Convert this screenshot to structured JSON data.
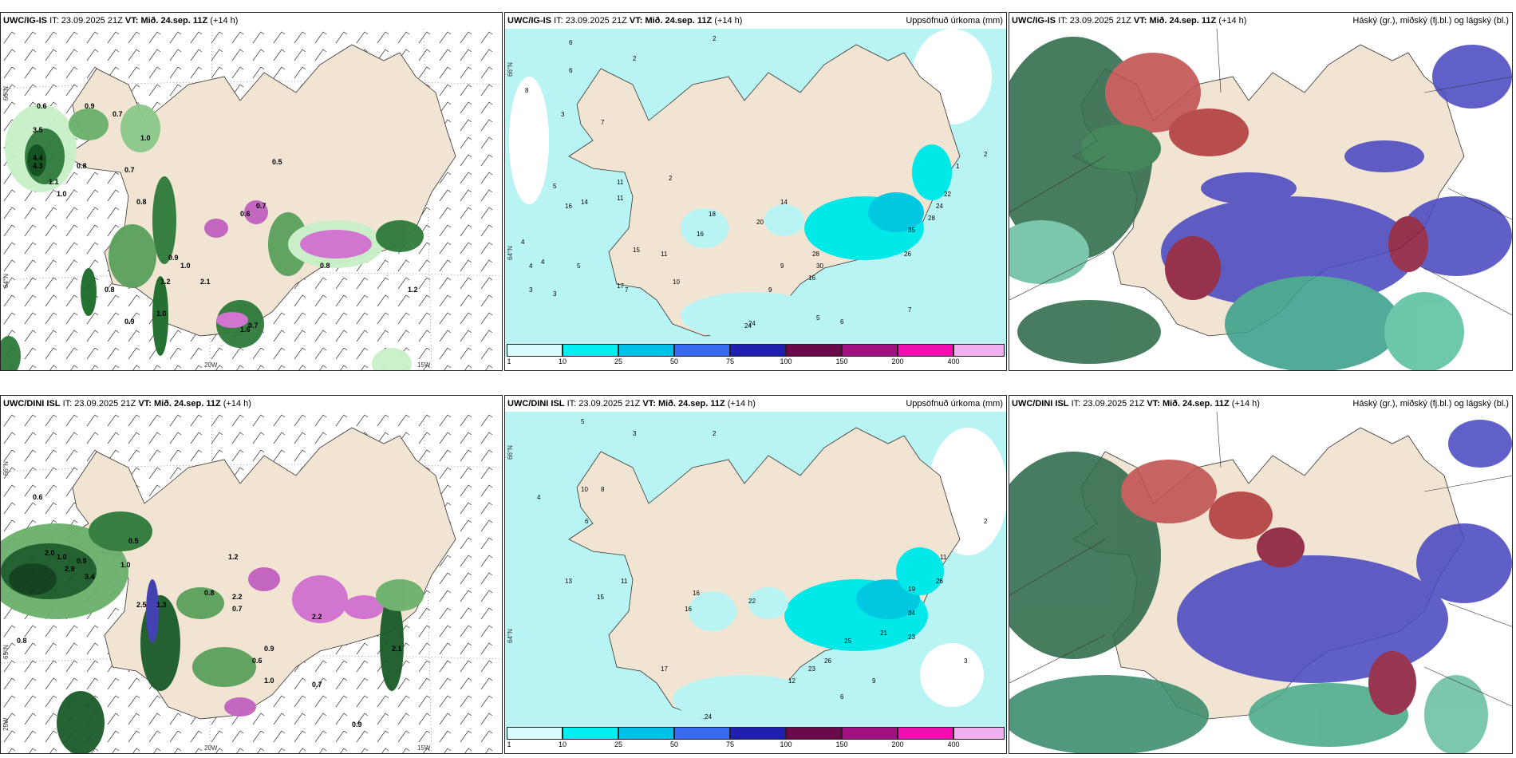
{
  "panels": [
    {
      "model": "UWC/IG-IS",
      "it_label": "IT:",
      "it": "23.09.2025 21Z",
      "vt_label": "VT:",
      "vt": "Mið. 24.sep. 11Z",
      "lead": "(+14 h)",
      "right": ""
    },
    {
      "model": "UWC/IG-IS",
      "it_label": "IT:",
      "it": "23.09.2025 21Z",
      "vt_label": "VT:",
      "vt": "Mið. 24.sep. 11Z",
      "lead": "(+14 h)",
      "right": "Uppsöfnuð úrkoma (mm)"
    },
    {
      "model": "UWC/IG-IS",
      "it_label": "IT:",
      "it": "23.09.2025 21Z",
      "vt_label": "VT:",
      "vt": "Mið. 24.sep. 11Z",
      "lead": "(+14 h)",
      "right": "Háský (gr.), miðský (fj.bl.) og lágský (bl.)"
    },
    {
      "model": "UWC/DINI ISL",
      "it_label": "IT:",
      "it": "23.09.2025 21Z",
      "vt_label": "VT:",
      "vt": "Mið. 24.sep. 11Z",
      "lead": "(+14 h)",
      "right": ""
    },
    {
      "model": "UWC/DINI ISL",
      "it_label": "IT:",
      "it": "23.09.2025 21Z",
      "vt_label": "VT:",
      "vt": "Mið. 24.sep. 11Z",
      "lead": "(+14 h)",
      "right": "Uppsöfnuð úrkoma (mm)"
    },
    {
      "model": "UWC/DINI ISL",
      "it_label": "IT:",
      "it": "23.09.2025 21Z",
      "vt_label": "VT:",
      "vt": "Mið. 24.sep. 11Z",
      "lead": "(+14 h)",
      "right": "Háský (gr.), miðský (fj.bl.) og lágský (bl.)"
    }
  ],
  "axes": {
    "lat_66": "66°N",
    "lat_64": "64°N",
    "lat_65": "65°N",
    "lon_20": "20W",
    "lon_15": "15W",
    "lon_25": "25W"
  },
  "precip_colorbar": {
    "labels": [
      "1",
      "10",
      "25",
      "50",
      "75",
      "100",
      "150",
      "200",
      "400"
    ],
    "colors": [
      "#d8fbfb",
      "#00f0f0",
      "#00c0e8",
      "#3a6af0",
      "#2020b0",
      "#6a0a4a",
      "#a01080",
      "#f010b0",
      "#f0b0f0"
    ]
  },
  "colors": {
    "land": "#f1e4d3",
    "precip_light": "#b8f4f4",
    "rain_light": "#c8f0c8",
    "rain_dark": "#0a5a18",
    "cloud_high": "#2e7a4a",
    "cloud_mid": "#b03a3a",
    "cloud_low": "#4a4ac0"
  },
  "precip_numbers_top": [
    "6",
    "2",
    "2",
    "8",
    "5",
    "4",
    "7",
    "3",
    "11",
    "16",
    "14",
    "15",
    "11",
    "10",
    "2",
    "4",
    "4",
    "3",
    "5",
    "3",
    "6",
    "7",
    "11",
    "17",
    "24",
    "28",
    "30",
    "16",
    "26",
    "20",
    "18",
    "16",
    "24",
    "35",
    "22",
    "24",
    "28",
    "14",
    "2",
    "1",
    "9",
    "9",
    "5",
    "6",
    "7"
  ],
  "wind_numbers_top": [
    "0.6",
    "0.9",
    "3.5",
    "4.4",
    "4.3",
    "0.7",
    "1.0",
    "0.8",
    "1.1",
    "1.0",
    "0.7",
    "0.8",
    "0.5",
    "0.9",
    "1.0",
    "1.2",
    "2.1",
    "0.8",
    "0.9",
    "1.0",
    "0.6",
    "0.7",
    "0.8",
    "0.7",
    "1.2",
    "1.6"
  ],
  "precip_numbers_bottom": [
    "5",
    "3",
    "2",
    "4",
    "6",
    "8",
    "10",
    "13",
    "11",
    "16",
    "15",
    "22",
    "12",
    "24",
    "17",
    "16",
    "23",
    "25",
    "26",
    "34",
    "19",
    "26",
    "23",
    "21",
    "11",
    "9",
    "6",
    "2",
    "3"
  ],
  "wind_numbers_bottom": [
    "0.6",
    "2.0",
    "1.0",
    "0.9",
    "3.4",
    "2.9",
    "0.5",
    "1.0",
    "2.5",
    "1.3",
    "0.8",
    "0.7",
    "1.2",
    "2.2",
    "0.9",
    "0.6",
    "1.0",
    "0.7",
    "2.2",
    "0.9",
    "0.8",
    "2.1"
  ]
}
